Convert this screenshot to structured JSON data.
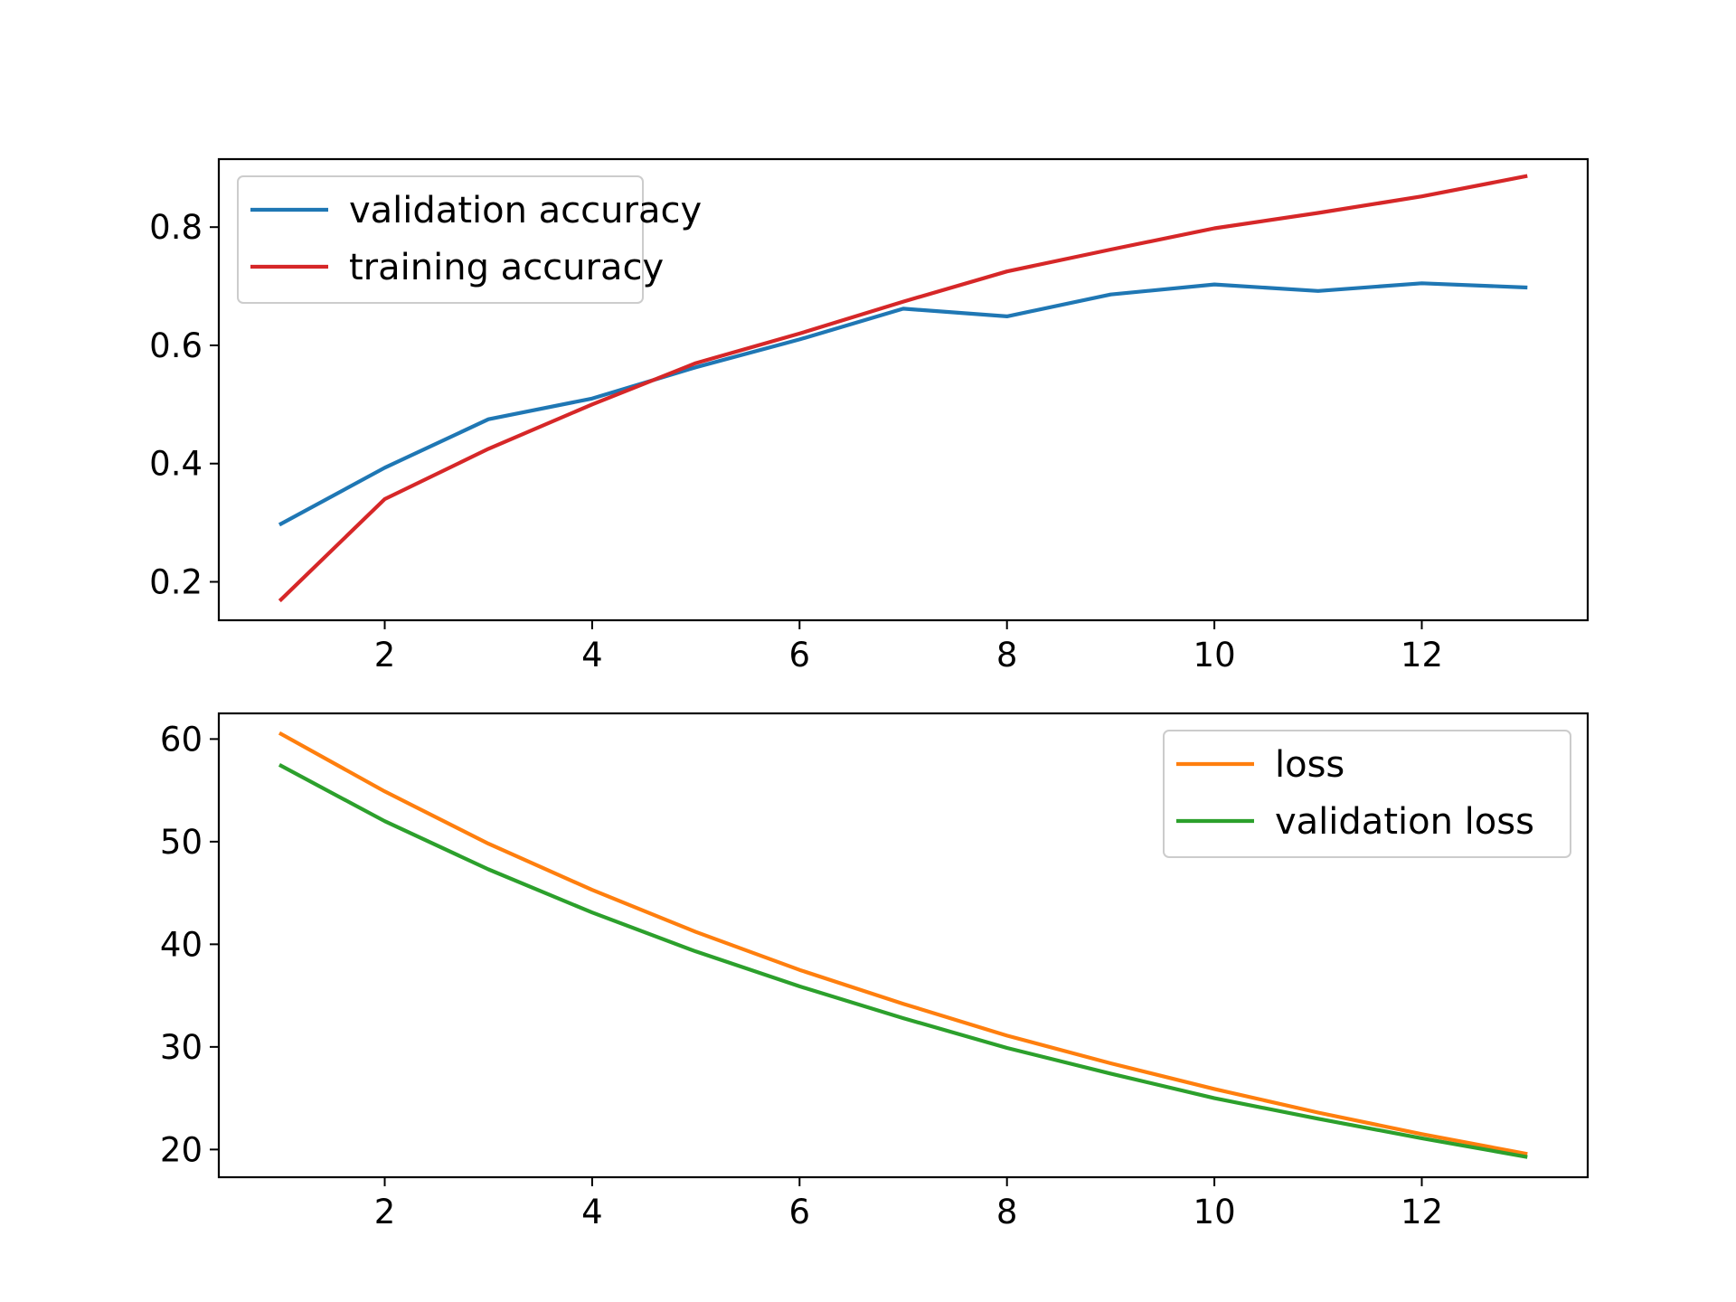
{
  "chart_data": [
    {
      "type": "line",
      "title": "",
      "xlabel": "",
      "ylabel": "",
      "xlim": [
        0.4,
        13.6
      ],
      "ylim": [
        0.135,
        0.915
      ],
      "xticks": [
        2,
        4,
        6,
        8,
        10,
        12
      ],
      "yticks": [
        0.2,
        0.4,
        0.6,
        0.8
      ],
      "legend_position": "top-left",
      "grid": false,
      "x": [
        1,
        2,
        3,
        4,
        5,
        6,
        7,
        8,
        9,
        10,
        11,
        12,
        13
      ],
      "series": [
        {
          "name": "validation accuracy",
          "color": "#1f77b4",
          "values": [
            0.298,
            0.393,
            0.475,
            0.51,
            0.563,
            0.61,
            0.662,
            0.649,
            0.686,
            0.703,
            0.692,
            0.705,
            0.698
          ]
        },
        {
          "name": "training accuracy",
          "color": "#d62728",
          "values": [
            0.17,
            0.34,
            0.425,
            0.5,
            0.57,
            0.62,
            0.674,
            0.725,
            0.762,
            0.798,
            0.824,
            0.852,
            0.886
          ]
        }
      ]
    },
    {
      "type": "line",
      "title": "",
      "xlabel": "",
      "ylabel": "",
      "xlim": [
        0.4,
        13.6
      ],
      "ylim": [
        17.3,
        62.5
      ],
      "xticks": [
        2,
        4,
        6,
        8,
        10,
        12
      ],
      "yticks": [
        20,
        30,
        40,
        50,
        60
      ],
      "legend_position": "top-right",
      "grid": false,
      "x": [
        1,
        2,
        3,
        4,
        5,
        6,
        7,
        8,
        9,
        10,
        11,
        12,
        13
      ],
      "series": [
        {
          "name": "loss",
          "color": "#ff7f0e",
          "values": [
            60.5,
            54.9,
            49.8,
            45.3,
            41.2,
            37.5,
            34.2,
            31.1,
            28.4,
            25.9,
            23.6,
            21.5,
            19.6
          ]
        },
        {
          "name": "validation loss",
          "color": "#2ca02c",
          "values": [
            57.4,
            52.0,
            47.3,
            43.1,
            39.3,
            35.9,
            32.8,
            29.9,
            27.4,
            25.0,
            23.0,
            21.1,
            19.3
          ]
        }
      ]
    }
  ]
}
